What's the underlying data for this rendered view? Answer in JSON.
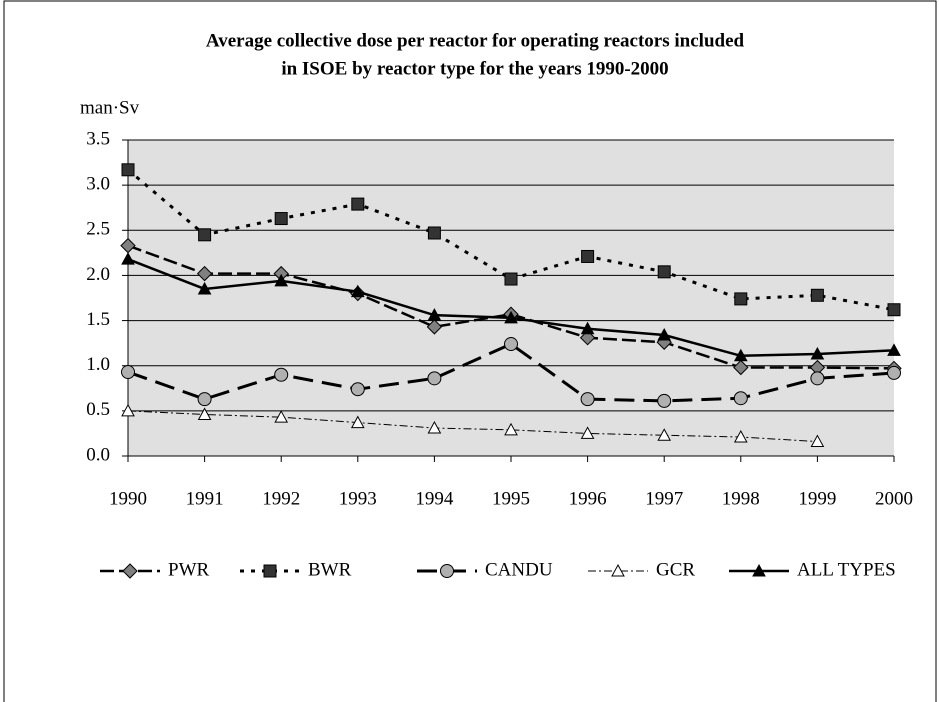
{
  "chart_data": {
    "type": "line",
    "title": [
      "Average collective dose per reactor for operating reactors included",
      "in ISOE by reactor type for the years 1990-2000"
    ],
    "y_label": "man·Sv",
    "categories": [
      "1990",
      "1991",
      "1992",
      "1993",
      "1994",
      "1995",
      "1996",
      "1997",
      "1998",
      "1999",
      "2000"
    ],
    "ylim": [
      0,
      3.5
    ],
    "yticks": [
      {
        "value": 0,
        "label": "0.0"
      },
      {
        "value": 0.5,
        "label": "0.5"
      },
      {
        "value": 1,
        "label": "1.0"
      },
      {
        "value": 1.5,
        "label": "1.5"
      },
      {
        "value": 2,
        "label": "2.0"
      },
      {
        "value": 2.5,
        "label": "2.5"
      },
      {
        "value": 3,
        "label": "3.0"
      },
      {
        "value": 3.5,
        "label": "3.5"
      }
    ],
    "grid": true,
    "legend": "bottom",
    "series": [
      {
        "name": "PWR",
        "color": "#808080",
        "marker": "diamond",
        "dash": "14,5",
        "width": 2.5,
        "values": [
          2.33,
          2.02,
          2.02,
          1.8,
          1.43,
          1.57,
          1.31,
          1.26,
          0.98,
          0.98,
          0.97
        ]
      },
      {
        "name": "BWR",
        "color": "#333333",
        "marker": "square",
        "dash": "4,7",
        "width": 3,
        "values": [
          3.17,
          2.45,
          2.63,
          2.79,
          2.47,
          1.96,
          2.21,
          2.04,
          1.74,
          1.78,
          1.62
        ]
      },
      {
        "name": "CANDU",
        "color": "#b0b0b0",
        "marker": "circle",
        "dash": "20,9",
        "width": 3,
        "values": [
          0.93,
          0.63,
          0.9,
          0.74,
          0.86,
          1.24,
          0.63,
          0.61,
          0.64,
          0.86,
          0.92
        ]
      },
      {
        "name": "GCR",
        "color": "#ffffff",
        "marker": "triangle",
        "dash": "8,3,2,3",
        "width": 1,
        "values": [
          0.5,
          0.46,
          0.43,
          0.37,
          0.31,
          0.29,
          0.25,
          0.23,
          0.21,
          0.16,
          null
        ]
      },
      {
        "name": "ALL TYPES",
        "color": "#000000",
        "marker": "triangle",
        "dash": "none",
        "width": 2.5,
        "values": [
          2.18,
          1.85,
          1.94,
          1.82,
          1.56,
          1.53,
          1.41,
          1.34,
          1.11,
          1.13,
          1.17
        ]
      }
    ]
  }
}
